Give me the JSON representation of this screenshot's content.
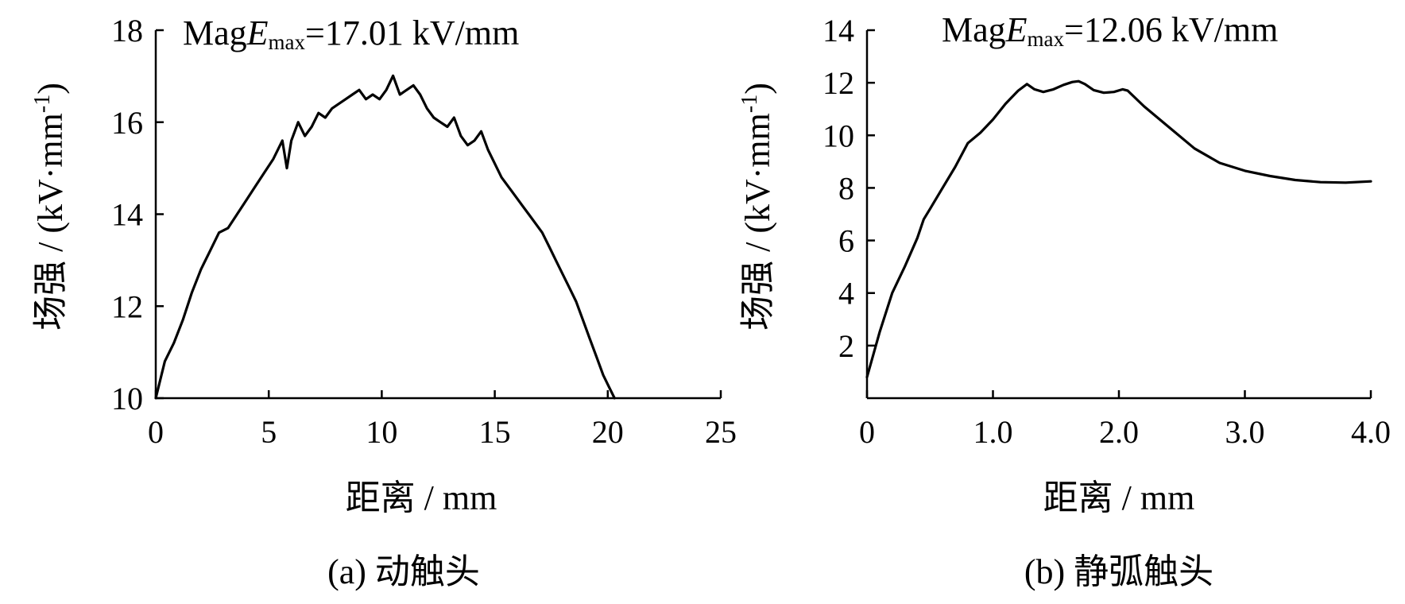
{
  "chart_data": [
    {
      "type": "line",
      "panel": "a",
      "annotation": {
        "prefix": "Mag",
        "var": "E",
        "sub": "max",
        "value": "=17.01 kV/mm"
      },
      "xlabel": "距离 / mm",
      "ylabel": "场强 / (kV·mm",
      "ylabel_sup": "-1",
      "ylabel_close": ")",
      "caption": "(a)  动触头",
      "xlim": [
        0,
        25
      ],
      "ylim": [
        10,
        18
      ],
      "xticks": [
        0,
        5,
        10,
        15,
        20,
        25
      ],
      "xtick_labels": [
        "0",
        "5",
        "10",
        "15",
        "20",
        "25"
      ],
      "yticks": [
        10,
        12,
        14,
        16,
        18
      ],
      "ytick_labels": [
        "10",
        "12",
        "14",
        "16",
        "18"
      ],
      "grid": false,
      "series": [
        {
          "x": [
            0,
            0.4,
            0.8,
            1.2,
            1.6,
            2.0,
            2.4,
            2.8,
            3.2,
            3.6,
            4.0,
            4.4,
            4.8,
            5.2,
            5.6,
            5.8,
            6.0,
            6.3,
            6.6,
            6.9,
            7.2,
            7.5,
            7.8,
            8.1,
            8.4,
            8.7,
            9.0,
            9.3,
            9.6,
            9.9,
            10.2,
            10.5,
            10.8,
            11.1,
            11.4,
            11.7,
            12.0,
            12.3,
            12.6,
            12.9,
            13.2,
            13.5,
            13.8,
            14.1,
            14.4,
            14.7,
            15.0,
            15.3,
            15.6,
            15.9,
            16.2,
            16.5,
            16.8,
            17.1,
            17.4,
            17.7,
            18.0,
            18.3,
            18.6,
            18.9,
            19.2,
            19.5,
            19.8,
            20.1,
            20.3
          ],
          "y": [
            10.0,
            10.8,
            11.2,
            11.7,
            12.3,
            12.8,
            13.2,
            13.6,
            13.7,
            14.0,
            14.3,
            14.6,
            14.9,
            15.2,
            15.6,
            15.0,
            15.6,
            16.0,
            15.7,
            15.9,
            16.2,
            16.1,
            16.3,
            16.4,
            16.5,
            16.6,
            16.7,
            16.5,
            16.6,
            16.5,
            16.7,
            17.01,
            16.6,
            16.7,
            16.8,
            16.6,
            16.3,
            16.1,
            16.0,
            15.9,
            16.1,
            15.7,
            15.5,
            15.6,
            15.8,
            15.4,
            15.1,
            14.8,
            14.6,
            14.4,
            14.2,
            14.0,
            13.8,
            13.6,
            13.3,
            13.0,
            12.7,
            12.4,
            12.1,
            11.7,
            11.3,
            10.9,
            10.5,
            10.2,
            10.0
          ]
        }
      ]
    },
    {
      "type": "line",
      "panel": "b",
      "annotation": {
        "prefix": "Mag",
        "var": "E",
        "sub": "max",
        "value": "=12.06 kV/mm"
      },
      "xlabel": "距离 / mm",
      "ylabel": "场强 / (kV·mm",
      "ylabel_sup": "-1",
      "ylabel_close": ")",
      "caption": "(b)  静弧触头",
      "xlim": [
        0,
        4.0
      ],
      "ylim": [
        0,
        14
      ],
      "xticks": [
        0,
        1.0,
        2.0,
        3.0,
        4.0
      ],
      "xtick_labels": [
        "0",
        "1.0",
        "2.0",
        "3.0",
        "4.0"
      ],
      "yticks": [
        2,
        4,
        6,
        8,
        10,
        12,
        14
      ],
      "ytick_labels": [
        "2",
        "4",
        "6",
        "8",
        "10",
        "12",
        "14"
      ],
      "grid": false,
      "series": [
        {
          "x": [
            0,
            0.1,
            0.2,
            0.3,
            0.4,
            0.45,
            0.5,
            0.6,
            0.7,
            0.8,
            0.9,
            1.0,
            1.1,
            1.2,
            1.27,
            1.33,
            1.4,
            1.48,
            1.56,
            1.63,
            1.68,
            1.73,
            1.8,
            1.88,
            1.96,
            2.03,
            2.07,
            2.2,
            2.4,
            2.6,
            2.8,
            3.0,
            3.2,
            3.4,
            3.6,
            3.8,
            4.0
          ],
          "y": [
            0.8,
            2.5,
            4.0,
            5.0,
            6.1,
            6.8,
            7.2,
            8.0,
            8.8,
            9.7,
            10.1,
            10.6,
            11.2,
            11.7,
            11.95,
            11.75,
            11.65,
            11.75,
            11.92,
            12.03,
            12.06,
            11.95,
            11.72,
            11.62,
            11.65,
            11.75,
            11.7,
            11.1,
            10.3,
            9.5,
            8.95,
            8.65,
            8.45,
            8.3,
            8.22,
            8.2,
            8.25
          ]
        }
      ]
    }
  ]
}
